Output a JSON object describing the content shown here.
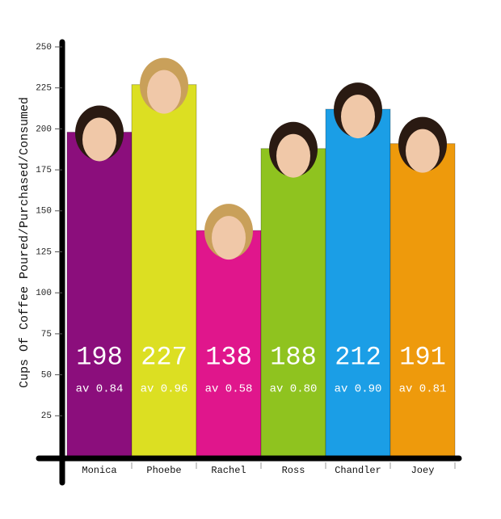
{
  "chart_data": {
    "type": "bar",
    "y_label": "Cups Of Coffee Poured/Purchased/Consumed",
    "categories": [
      "Monica",
      "Phoebe",
      "Rachel",
      "Ross",
      "Chandler",
      "Joey"
    ],
    "values": [
      198,
      227,
      138,
      188,
      212,
      191
    ],
    "sublabels": [
      "av 0.84",
      "av 0.96",
      "av 0.58",
      "av 0.80",
      "av 0.90",
      "av 0.81"
    ],
    "colors": [
      "#8b0e7c",
      "#dcdf22",
      "#e0168c",
      "#8fc31f",
      "#1b9ee6",
      "#ee9a0c"
    ],
    "ylim": [
      0,
      250
    ],
    "yticks": [
      25,
      50,
      75,
      100,
      125,
      150,
      175,
      200,
      225,
      250
    ]
  }
}
